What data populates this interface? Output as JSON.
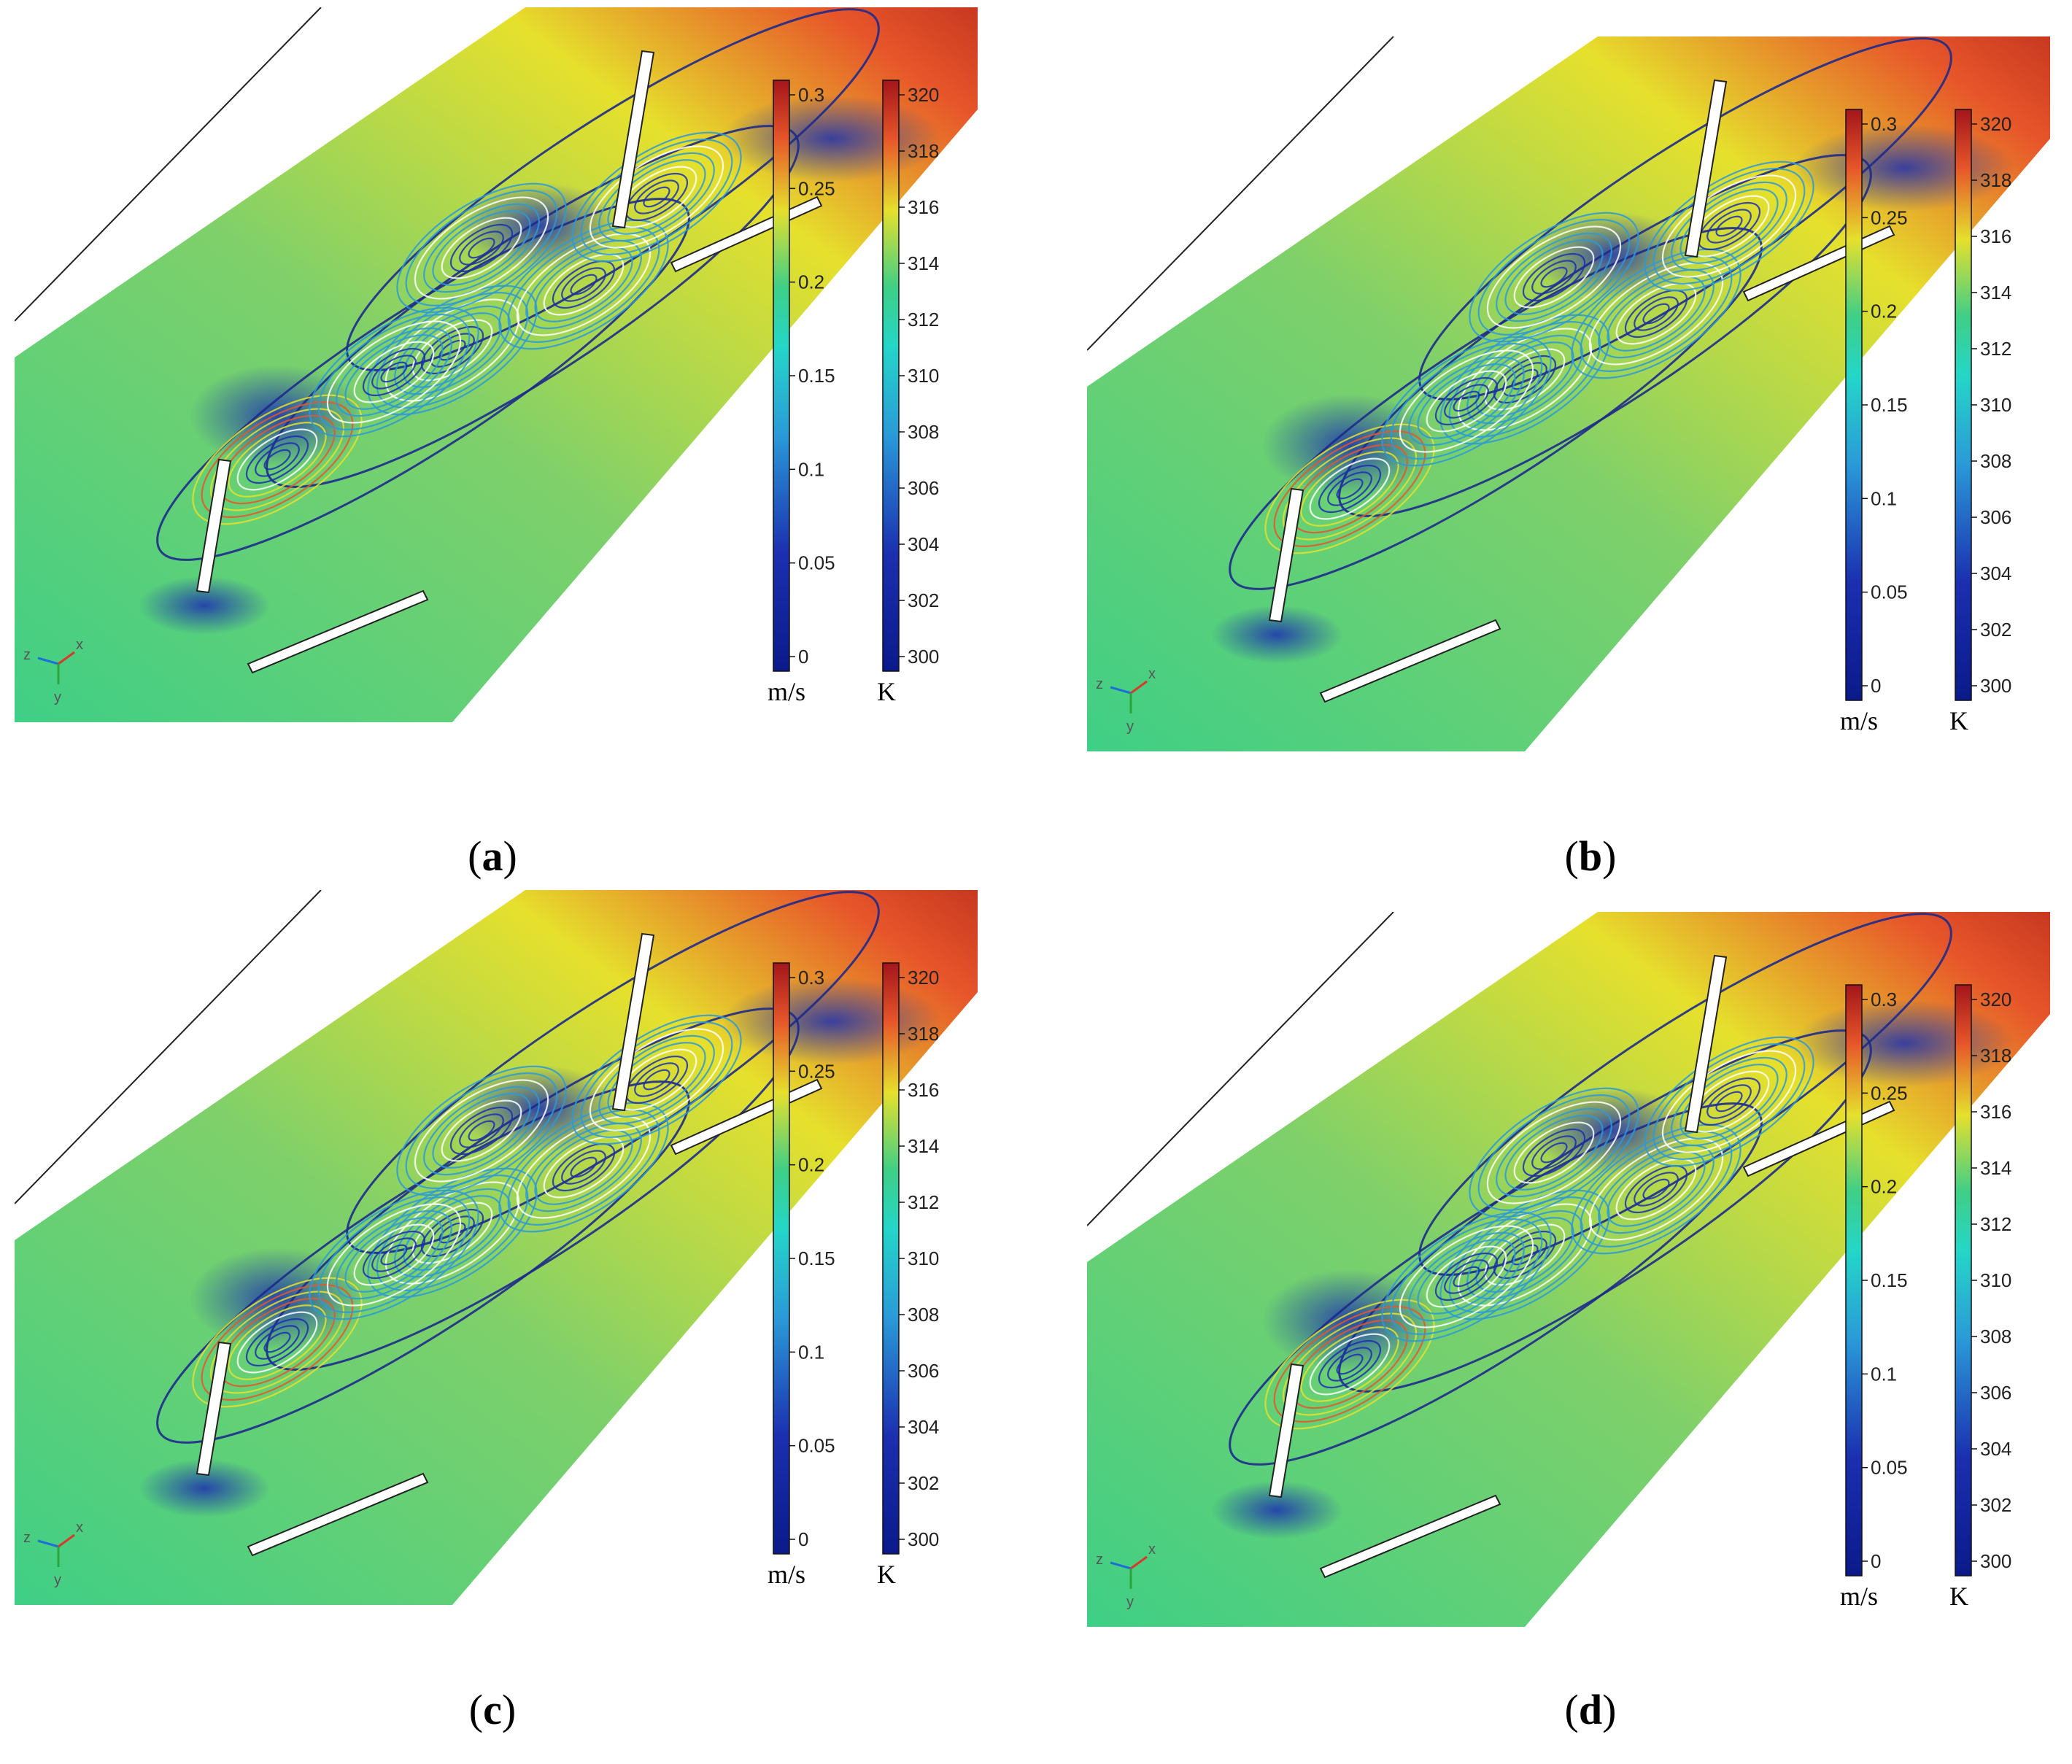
{
  "panels": [
    {
      "id": "a",
      "caption": "a",
      "velocity_unit": "m/s",
      "temp_unit": "K"
    },
    {
      "id": "b",
      "caption": "b",
      "velocity_unit": "m/s",
      "temp_unit": "K"
    },
    {
      "id": "c",
      "caption": "c",
      "velocity_unit": "m/s",
      "temp_unit": "K"
    },
    {
      "id": "d",
      "caption": "d",
      "velocity_unit": "m/s",
      "temp_unit": "K"
    }
  ],
  "velocity_colorbar": {
    "ticks": [
      "0.3",
      "0.25",
      "0.2",
      "0.15",
      "0.1",
      "0.05",
      "0"
    ],
    "range": [
      0,
      0.34
    ]
  },
  "temperature_colorbar": {
    "ticks": [
      "320",
      "318",
      "316",
      "314",
      "312",
      "310",
      "308",
      "306",
      "304",
      "302",
      "300"
    ],
    "range": [
      299,
      320
    ]
  },
  "axes_triad": {
    "labels": [
      "z",
      "x",
      "y"
    ]
  },
  "colors": {
    "cold": "#1b2fb0",
    "cool": "#2a9ad8",
    "mid": "#3fcf86",
    "warm": "#e6e02c",
    "hot": "#e7562a",
    "max": "#a3151a"
  }
}
